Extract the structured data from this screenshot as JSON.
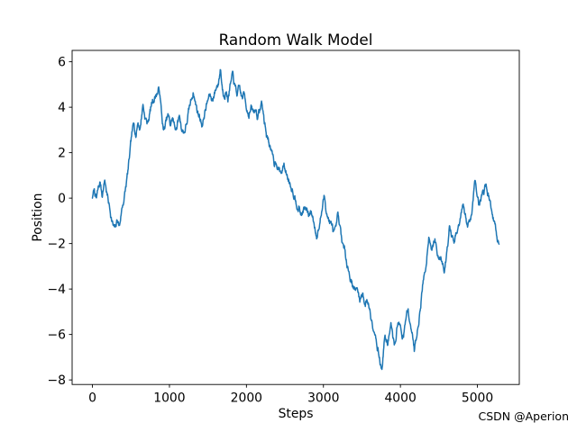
{
  "figure": {
    "background": "#ffffff",
    "watermark": {
      "text": "CSDN @Aperion",
      "color": "#c9c9cd"
    }
  },
  "chart_data": {
    "type": "line",
    "title": "Random Walk Model",
    "xlabel": "Steps",
    "ylabel": "Position",
    "legend": null,
    "grid": false,
    "line_color": "#1f77b4",
    "line_width": 1.5,
    "axis_color": "#000000",
    "xlim": [
      -264,
      5544
    ],
    "ylim": [
      -8.2,
      6.5
    ],
    "xticks": {
      "values": [
        0,
        1000,
        2000,
        3000,
        4000,
        5000
      ],
      "labels": [
        "0",
        "1000",
        "2000",
        "3000",
        "4000",
        "5000"
      ]
    },
    "yticks": {
      "values": [
        -8,
        -6,
        -4,
        -2,
        0,
        2,
        4,
        6
      ],
      "labels": [
        "−8",
        "−6",
        "−4",
        "−2",
        "0",
        "2",
        "4",
        "6"
      ]
    },
    "n_steps": 5280,
    "point_spacing": 4,
    "noise": {
      "seed": 7,
      "step": 0.12,
      "decay": 0.9
    },
    "series_summary": {
      "start_value": 0,
      "end_value": -1.9,
      "max": {
        "step": 1663,
        "value": 5.8
      },
      "min": {
        "step": 3759,
        "value": -7.52
      }
    },
    "anchors": [
      [
        0,
        0
      ],
      [
        25,
        0.35
      ],
      [
        50,
        -0.1
      ],
      [
        75,
        0.3
      ],
      [
        100,
        0.6
      ],
      [
        125,
        0.15
      ],
      [
        160,
        0.85
      ],
      [
        185,
        0.3
      ],
      [
        210,
        -0.2
      ],
      [
        240,
        -0.7
      ],
      [
        270,
        -1.2
      ],
      [
        300,
        -1.47
      ],
      [
        325,
        -1.0
      ],
      [
        350,
        -1.3
      ],
      [
        375,
        -0.6
      ],
      [
        400,
        -0.15
      ],
      [
        430,
        0.4
      ],
      [
        460,
        1.1
      ],
      [
        485,
        1.8
      ],
      [
        515,
        2.7
      ],
      [
        540,
        3.1
      ],
      [
        565,
        2.85
      ],
      [
        590,
        3.4
      ],
      [
        620,
        3.15
      ],
      [
        655,
        4.2
      ],
      [
        680,
        3.7
      ],
      [
        715,
        3.3
      ],
      [
        745,
        3.8
      ],
      [
        780,
        4.3
      ],
      [
        831,
        4.65
      ],
      [
        870,
        4.8
      ],
      [
        900,
        3.6
      ],
      [
        925,
        2.9
      ],
      [
        955,
        3.25
      ],
      [
        983,
        3.55
      ],
      [
        1010,
        3.1
      ],
      [
        1040,
        3.5
      ],
      [
        1070,
        3.0
      ],
      [
        1100,
        3.25
      ],
      [
        1130,
        3.6
      ],
      [
        1160,
        3.1
      ],
      [
        1190,
        2.95
      ],
      [
        1220,
        3.3
      ],
      [
        1250,
        3.75
      ],
      [
        1280,
        4.2
      ],
      [
        1311,
        4.75
      ],
      [
        1340,
        4.2
      ],
      [
        1370,
        3.8
      ],
      [
        1429,
        3.3
      ],
      [
        1460,
        3.85
      ],
      [
        1490,
        4.2
      ],
      [
        1520,
        4.5
      ],
      [
        1550,
        4.3
      ],
      [
        1580,
        4.6
      ],
      [
        1610,
        4.9
      ],
      [
        1640,
        5.2
      ],
      [
        1663,
        5.8
      ],
      [
        1685,
        4.95
      ],
      [
        1700,
        4.7
      ],
      [
        1730,
        4.9
      ],
      [
        1760,
        4.55
      ],
      [
        1790,
        5.0
      ],
      [
        1825,
        5.3
      ],
      [
        1850,
        4.8
      ],
      [
        1880,
        4.5
      ],
      [
        1910,
        4.7
      ],
      [
        1940,
        4.3
      ],
      [
        1970,
        4.5
      ],
      [
        2000,
        4.1
      ],
      [
        2030,
        3.8
      ],
      [
        2060,
        4.0
      ],
      [
        2090,
        3.7
      ],
      [
        2120,
        3.9
      ],
      [
        2150,
        3.6
      ],
      [
        2200,
        4.2
      ],
      [
        2230,
        3.4
      ],
      [
        2260,
        2.8
      ],
      [
        2310,
        2.35
      ],
      [
        2330,
        1.9
      ],
      [
        2360,
        1.45
      ],
      [
        2390,
        1.7
      ],
      [
        2424,
        1.35
      ],
      [
        2450,
        1.1
      ],
      [
        2480,
        1.45
      ],
      [
        2506,
        1.25
      ],
      [
        2530,
        1.0
      ],
      [
        2564,
        0.75
      ],
      [
        2600,
        0.55
      ],
      [
        2640,
        0.1
      ],
      [
        2680,
        -0.2
      ],
      [
        2716,
        -0.7
      ],
      [
        2750,
        -0.35
      ],
      [
        2780,
        -0.55
      ],
      [
        2810,
        -0.9
      ],
      [
        2840,
        -0.6
      ],
      [
        2870,
        -1.0
      ],
      [
        2916,
        -1.55
      ],
      [
        2950,
        -1.1
      ],
      [
        2980,
        -0.5
      ],
      [
        3010,
        0.05
      ],
      [
        3040,
        -0.5
      ],
      [
        3070,
        -0.9
      ],
      [
        3100,
        -1.2
      ],
      [
        3130,
        -1.5
      ],
      [
        3160,
        -1.7
      ],
      [
        3185,
        -1.05
      ],
      [
        3215,
        -1.6
      ],
      [
        3240,
        -2.0
      ],
      [
        3267,
        -2.4
      ],
      [
        3300,
        -2.7
      ],
      [
        3349,
        -3.4
      ],
      [
        3380,
        -3.7
      ],
      [
        3410,
        -3.9
      ],
      [
        3440,
        -4.1
      ],
      [
        3478,
        -4.5
      ],
      [
        3510,
        -4.1
      ],
      [
        3540,
        -4.6
      ],
      [
        3583,
        -4.5
      ],
      [
        3618,
        -5.2
      ],
      [
        3665,
        -5.6
      ],
      [
        3690,
        -6.1
      ],
      [
        3710,
        -6.4
      ],
      [
        3736,
        -7.1
      ],
      [
        3759,
        -7.52
      ],
      [
        3794,
        -6.0
      ],
      [
        3830,
        -6.4
      ],
      [
        3876,
        -5.6
      ],
      [
        3923,
        -6.68
      ],
      [
        3970,
        -5.27
      ],
      [
        4000,
        -5.7
      ],
      [
        4040,
        -6.1
      ],
      [
        4098,
        -4.87
      ],
      [
        4145,
        -5.72
      ],
      [
        4180,
        -6.7
      ],
      [
        4230,
        -5.5
      ],
      [
        4274,
        -4.2
      ],
      [
        4300,
        -3.5
      ],
      [
        4330,
        -3.0
      ],
      [
        4368,
        -1.43
      ],
      [
        4415,
        -2.1
      ],
      [
        4450,
        -1.75
      ],
      [
        4485,
        -2.7
      ],
      [
        4530,
        -2.6
      ],
      [
        4567,
        -2.9
      ],
      [
        4600,
        -2.3
      ],
      [
        4637,
        -1.25
      ],
      [
        4696,
        -2.05
      ],
      [
        4750,
        -1.5
      ],
      [
        4813,
        -0.5
      ],
      [
        4871,
        -1.3
      ],
      [
        4930,
        -0.6
      ],
      [
        4965,
        0.95
      ],
      [
        5000,
        0.3
      ],
      [
        5023,
        -0.25
      ],
      [
        5060,
        0.2
      ],
      [
        5117,
        0.65
      ],
      [
        5150,
        0.1
      ],
      [
        5180,
        -0.4
      ],
      [
        5210,
        -0.9
      ],
      [
        5240,
        -1.5
      ],
      [
        5280,
        -1.9
      ]
    ]
  }
}
